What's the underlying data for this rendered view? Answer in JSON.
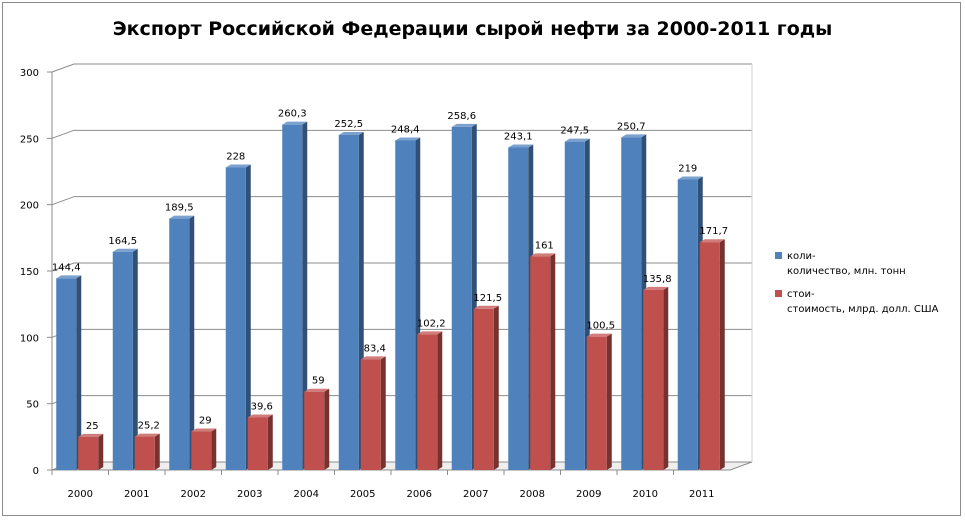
{
  "chart_data": {
    "type": "bar",
    "title": "Экспорт Российской Федерации сырой нефти за 2000-2011 годы",
    "categories": [
      "2000",
      "2001",
      "2002",
      "2003",
      "2004",
      "2005",
      "2006",
      "2007",
      "2008",
      "2009",
      "2010",
      "2011"
    ],
    "series": [
      {
        "name": "коли-количество, млн. тонн",
        "legend_lines": [
          "коли-",
          "количество, млн. тонн"
        ],
        "color": "#4F81BD",
        "values": [
          144.4,
          164.5,
          189.5,
          228,
          260.3,
          252.5,
          248.4,
          258.6,
          243.1,
          247.5,
          250.7,
          219
        ],
        "labels": [
          "144,4",
          "164,5",
          "189,5",
          "228",
          "260,3",
          "252,5",
          "248,4",
          "258,6",
          "243,1",
          "247,5",
          "250,7",
          "219"
        ]
      },
      {
        "name": "стои-стоимость, млрд. долл. США",
        "legend_lines": [
          "стои-",
          "стоимость, млрд. долл. США"
        ],
        "color": "#C0504D",
        "values": [
          25,
          25.2,
          29,
          39.6,
          59,
          83.4,
          102.2,
          121.5,
          161,
          100.5,
          135.8,
          171.7
        ],
        "labels": [
          "25",
          "25,2",
          "29",
          "39,6",
          "59",
          "83,4",
          "102,2",
          "121,5",
          "161",
          "100,5",
          "135,8",
          "171,7"
        ]
      }
    ],
    "ylim": [
      0,
      300
    ],
    "yticks": [
      0,
      50,
      100,
      150,
      200,
      250,
      300
    ],
    "grid": true,
    "legend_position": "right"
  }
}
